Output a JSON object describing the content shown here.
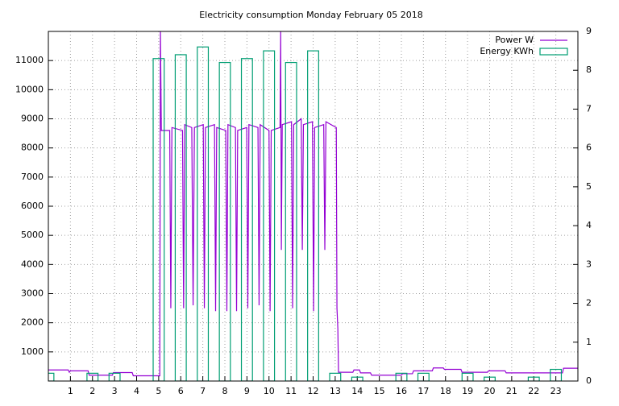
{
  "chart_data": {
    "type": "line",
    "title": "Electricity consumption Monday February 05 2018",
    "xlim": [
      0,
      24
    ],
    "xticks": [
      1,
      2,
      3,
      4,
      5,
      6,
      7,
      8,
      9,
      10,
      11,
      12,
      13,
      14,
      15,
      16,
      17,
      18,
      19,
      20,
      21,
      22,
      23
    ],
    "ylim": [
      0,
      12000
    ],
    "yticks": [
      1000,
      2000,
      3000,
      4000,
      5000,
      6000,
      7000,
      8000,
      9000,
      10000,
      11000
    ],
    "y2lim": [
      0,
      9
    ],
    "y2ticks": [
      0,
      1,
      2,
      3,
      4,
      5,
      6,
      7,
      8,
      9
    ],
    "grid": true,
    "legend": "top-right",
    "series": [
      {
        "name": "Power W",
        "color": "#9400d3",
        "type": "line",
        "x": [
          0,
          0.9,
          0.95,
          1.0,
          1.8,
          1.85,
          2.9,
          2.95,
          3.8,
          3.85,
          5.05,
          5.08,
          5.12,
          5.5,
          5.55,
          5.6,
          6.08,
          6.13,
          6.18,
          6.5,
          6.56,
          6.62,
          7.02,
          7.07,
          7.12,
          7.53,
          7.58,
          7.63,
          8.04,
          8.09,
          8.14,
          8.48,
          8.53,
          8.58,
          8.99,
          9.04,
          9.09,
          9.5,
          9.55,
          9.6,
          10.0,
          10.05,
          10.1,
          10.5,
          10.53,
          10.56,
          10.6,
          11.02,
          11.07,
          11.12,
          11.46,
          11.51,
          11.56,
          11.97,
          12.02,
          12.07,
          12.48,
          12.53,
          12.58,
          13.05,
          13.08,
          13.12,
          13.15,
          13.8,
          13.85,
          14.1,
          14.15,
          14.6,
          14.65,
          16.0,
          16.05,
          16.5,
          16.55,
          17.4,
          17.45,
          17.9,
          17.95,
          18.7,
          18.75,
          19.9,
          19.95,
          20.7,
          20.75,
          23.3,
          23.35,
          24
        ],
        "values": [
          380,
          380,
          300,
          350,
          350,
          200,
          200,
          290,
          290,
          180,
          180,
          12000,
          8600,
          8600,
          2500,
          8700,
          8600,
          2500,
          8800,
          8700,
          2600,
          8700,
          8800,
          2500,
          8700,
          8800,
          2400,
          8700,
          8600,
          2400,
          8800,
          8700,
          2400,
          8600,
          8700,
          2500,
          8800,
          8700,
          2600,
          8800,
          8600,
          2400,
          8600,
          8700,
          12000,
          4500,
          8800,
          8900,
          2500,
          8800,
          9000,
          4500,
          8800,
          8900,
          2400,
          8700,
          8800,
          4500,
          8900,
          8700,
          2500,
          1800,
          300,
          300,
          380,
          380,
          280,
          280,
          200,
          200,
          250,
          250,
          350,
          350,
          450,
          450,
          400,
          400,
          300,
          300,
          350,
          350,
          280,
          280,
          440,
          440
        ]
      },
      {
        "name": "Energy KWh",
        "color": "#009e73",
        "type": "boxes",
        "axis": "y2",
        "x": [
          0,
          1,
          2,
          3,
          4,
          5,
          6,
          7,
          8,
          9,
          10,
          11,
          12,
          13,
          14,
          15,
          16,
          17,
          18,
          19,
          20,
          21,
          22,
          23
        ],
        "values": [
          0.2,
          0,
          0.2,
          0.2,
          0,
          8.3,
          8.4,
          8.6,
          8.2,
          8.3,
          8.5,
          8.2,
          8.5,
          0.2,
          0.1,
          0,
          0.2,
          0.2,
          0,
          0.2,
          0.1,
          0,
          0.1,
          0.3
        ]
      }
    ]
  }
}
